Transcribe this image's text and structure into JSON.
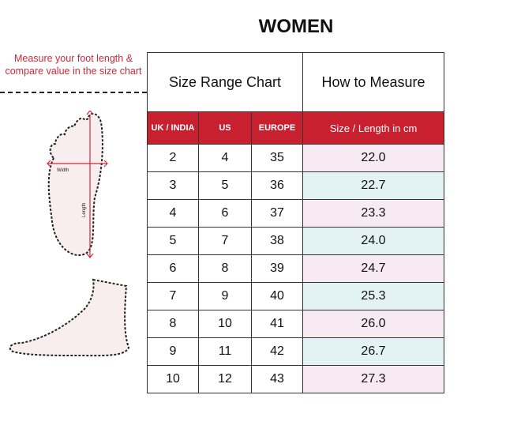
{
  "title": "WOMEN",
  "instruction": "Measure your foot length & compare value in the size chart",
  "diagram": {
    "width_label": "Width",
    "length_label": "Length"
  },
  "table": {
    "size_range_header": "Size Range Chart",
    "how_to_header": "How to Measure",
    "columns": [
      "UK / INDIA",
      "US",
      "EUROPE",
      "Size / Length in cm"
    ],
    "rows": [
      [
        "2",
        "4",
        "35",
        "22.0"
      ],
      [
        "3",
        "5",
        "36",
        "22.7"
      ],
      [
        "4",
        "6",
        "37",
        "23.3"
      ],
      [
        "5",
        "7",
        "38",
        "24.0"
      ],
      [
        "6",
        "8",
        "39",
        "24.7"
      ],
      [
        "7",
        "9",
        "40",
        "25.3"
      ],
      [
        "8",
        "10",
        "41",
        "26.0"
      ],
      [
        "9",
        "11",
        "42",
        "26.7"
      ],
      [
        "10",
        "12",
        "43",
        "27.3"
      ]
    ]
  },
  "colors": {
    "accent": "#c8202f",
    "row_pink": "#f7eaf3",
    "row_cyan": "#e3f3f5"
  }
}
